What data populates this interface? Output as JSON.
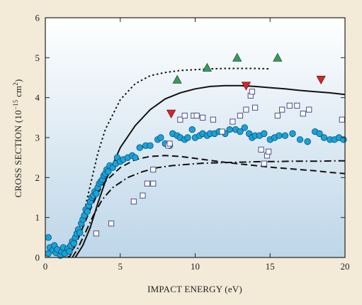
{
  "chart_data": {
    "type": "scatter",
    "xlabel": "IMPACT ENERGY (eV)",
    "ylabel_main": "CROSS SECTION (10",
    "ylabel_exp": "−15",
    "ylabel_tail": " cm",
    "ylabel_exp2": "2",
    "ylabel_close": ")",
    "xlim": [
      0,
      20
    ],
    "ylim": [
      0,
      6
    ],
    "xticks": [
      0,
      5,
      10,
      15,
      20
    ],
    "yticks": [
      0,
      1,
      2,
      3,
      4,
      5,
      6
    ],
    "grid": false,
    "legend": "none",
    "colors": {
      "page_bg": "#f3ead7",
      "plot_bg_top": "#ffffff",
      "plot_bg_bottom": "#bdd6e8",
      "circle": "#1aa3d6",
      "circle_edge": "#0b4f7a",
      "square_edge": "#4a4f8a",
      "triangle_up": "#3a9a5c",
      "triangle_down": "#cc2a2a",
      "curve": "#111111"
    },
    "series": [
      {
        "marker": "circle",
        "points": [
          [
            0.2,
            0.5
          ],
          [
            0.2,
            0.1
          ],
          [
            0.3,
            0.25
          ],
          [
            0.5,
            0.18
          ],
          [
            0.6,
            0.3
          ],
          [
            0.7,
            0.12
          ],
          [
            0.8,
            0.2
          ],
          [
            1.0,
            0.05
          ],
          [
            1.1,
            0.15
          ],
          [
            1.2,
            0.25
          ],
          [
            1.3,
            0.1
          ],
          [
            1.5,
            0.22
          ],
          [
            1.6,
            0.15
          ],
          [
            1.7,
            0.3
          ],
          [
            1.8,
            0.4
          ],
          [
            1.9,
            0.35
          ],
          [
            2.0,
            0.5
          ],
          [
            2.1,
            0.6
          ],
          [
            2.2,
            0.7
          ],
          [
            2.3,
            0.62
          ],
          [
            2.4,
            0.85
          ],
          [
            2.5,
            0.95
          ],
          [
            2.6,
            1.05
          ],
          [
            2.7,
            1.2
          ],
          [
            2.8,
            1.15
          ],
          [
            2.9,
            1.3
          ],
          [
            3.0,
            1.4
          ],
          [
            3.1,
            1.5
          ],
          [
            3.2,
            1.55
          ],
          [
            3.3,
            1.65
          ],
          [
            3.4,
            1.6
          ],
          [
            3.5,
            1.75
          ],
          [
            3.6,
            1.85
          ],
          [
            3.7,
            1.9
          ],
          [
            3.8,
            1.95
          ],
          [
            3.9,
            2.05
          ],
          [
            4.0,
            2.1
          ],
          [
            4.1,
            2.2
          ],
          [
            4.2,
            2.15
          ],
          [
            4.3,
            2.3
          ],
          [
            4.5,
            2.25
          ],
          [
            4.7,
            2.35
          ],
          [
            4.8,
            2.5
          ],
          [
            5.0,
            2.4
          ],
          [
            5.2,
            2.45
          ],
          [
            5.5,
            2.5
          ],
          [
            5.8,
            2.55
          ],
          [
            6.0,
            2.5
          ],
          [
            6.3,
            2.75
          ],
          [
            6.7,
            2.8
          ],
          [
            7.0,
            2.8
          ],
          [
            7.5,
            2.95
          ],
          [
            7.7,
            3.0
          ],
          [
            8.0,
            2.85
          ],
          [
            8.3,
            2.8
          ],
          [
            8.5,
            3.1
          ],
          [
            8.8,
            3.05
          ],
          [
            9.0,
            3.0
          ],
          [
            9.3,
            2.95
          ],
          [
            9.5,
            3.0
          ],
          [
            9.8,
            3.2
          ],
          [
            10.0,
            3.0
          ],
          [
            10.3,
            3.05
          ],
          [
            10.5,
            3.1
          ],
          [
            10.8,
            3.05
          ],
          [
            11.0,
            3.1
          ],
          [
            11.3,
            3.1
          ],
          [
            11.6,
            3.15
          ],
          [
            12.0,
            3.1
          ],
          [
            12.3,
            3.2
          ],
          [
            12.7,
            3.2
          ],
          [
            13.0,
            3.15
          ],
          [
            13.3,
            3.25
          ],
          [
            13.6,
            3.1
          ],
          [
            13.8,
            3.0
          ],
          [
            14.0,
            3.05
          ],
          [
            14.3,
            3.05
          ],
          [
            14.6,
            3.1
          ],
          [
            15.0,
            2.95
          ],
          [
            15.3,
            3.0
          ],
          [
            15.6,
            3.05
          ],
          [
            16.0,
            3.05
          ],
          [
            16.5,
            3.1
          ],
          [
            17.0,
            2.95
          ],
          [
            17.5,
            2.9
          ],
          [
            18.0,
            3.15
          ],
          [
            18.3,
            3.1
          ],
          [
            18.6,
            3.0
          ],
          [
            19.0,
            2.95
          ],
          [
            19.3,
            2.95
          ],
          [
            19.6,
            3.0
          ],
          [
            19.9,
            2.95
          ]
        ]
      },
      {
        "marker": "square",
        "points": [
          [
            3.4,
            0.6
          ],
          [
            4.4,
            0.85
          ],
          [
            5.9,
            1.4
          ],
          [
            6.5,
            1.55
          ],
          [
            6.8,
            1.85
          ],
          [
            7.2,
            1.85
          ],
          [
            7.2,
            2.2
          ],
          [
            8.2,
            2.8
          ],
          [
            8.3,
            2.85
          ],
          [
            9.0,
            3.45
          ],
          [
            9.3,
            3.55
          ],
          [
            9.9,
            3.55
          ],
          [
            10.1,
            3.55
          ],
          [
            10.5,
            3.5
          ],
          [
            11.2,
            3.45
          ],
          [
            11.8,
            3.15
          ],
          [
            12.5,
            3.4
          ],
          [
            13.0,
            3.55
          ],
          [
            13.4,
            3.7
          ],
          [
            13.7,
            4.05
          ],
          [
            13.8,
            4.15
          ],
          [
            14.0,
            3.75
          ],
          [
            14.4,
            2.7
          ],
          [
            14.8,
            2.55
          ],
          [
            14.9,
            2.65
          ],
          [
            15.5,
            3.55
          ],
          [
            15.8,
            3.7
          ],
          [
            16.3,
            3.8
          ],
          [
            16.8,
            3.8
          ],
          [
            17.2,
            3.6
          ],
          [
            17.6,
            3.7
          ],
          [
            19.8,
            3.45
          ],
          [
            14.6,
            2.35
          ]
        ]
      },
      {
        "marker": "triangle-up",
        "points": [
          [
            8.8,
            4.45
          ],
          [
            10.8,
            4.75
          ],
          [
            12.8,
            5.0
          ],
          [
            15.5,
            5.0
          ]
        ]
      },
      {
        "marker": "triangle-down",
        "points": [
          [
            8.4,
            3.6
          ],
          [
            13.4,
            4.3
          ],
          [
            18.4,
            4.45
          ]
        ]
      },
      {
        "style": "dotted",
        "points": [
          [
            1.5,
            0
          ],
          [
            2.0,
            0.3
          ],
          [
            2.5,
            1.0
          ],
          [
            3.0,
            1.8
          ],
          [
            3.5,
            2.6
          ],
          [
            4.0,
            3.2
          ],
          [
            5.0,
            3.95
          ],
          [
            6.0,
            4.35
          ],
          [
            7.0,
            4.55
          ],
          [
            8.0,
            4.63
          ],
          [
            9.0,
            4.68
          ],
          [
            10.0,
            4.7
          ],
          [
            11.0,
            4.72
          ],
          [
            12.0,
            4.73
          ],
          [
            13.0,
            4.73
          ],
          [
            14.0,
            4.73
          ],
          [
            15.0,
            4.72
          ]
        ]
      },
      {
        "style": "solid",
        "points": [
          [
            2.0,
            0
          ],
          [
            2.5,
            0.3
          ],
          [
            3.0,
            0.75
          ],
          [
            3.5,
            1.35
          ],
          [
            4.0,
            1.9
          ],
          [
            5.0,
            2.75
          ],
          [
            6.0,
            3.3
          ],
          [
            7.0,
            3.7
          ],
          [
            8.0,
            3.97
          ],
          [
            9.0,
            4.12
          ],
          [
            10.0,
            4.22
          ],
          [
            11.0,
            4.28
          ],
          [
            12.0,
            4.3
          ],
          [
            13.0,
            4.3
          ],
          [
            14.0,
            4.28
          ],
          [
            15.0,
            4.25
          ],
          [
            16.0,
            4.22
          ],
          [
            17.0,
            4.18
          ],
          [
            18.0,
            4.15
          ],
          [
            19.0,
            4.12
          ],
          [
            20.0,
            4.08
          ]
        ]
      },
      {
        "style": "dashed",
        "points": [
          [
            1.6,
            0
          ],
          [
            2.0,
            0.3
          ],
          [
            2.5,
            0.75
          ],
          [
            3.0,
            1.2
          ],
          [
            3.5,
            1.6
          ],
          [
            4.0,
            1.9
          ],
          [
            5.0,
            2.25
          ],
          [
            6.0,
            2.45
          ],
          [
            7.0,
            2.53
          ],
          [
            8.0,
            2.55
          ],
          [
            9.0,
            2.53
          ],
          [
            10.0,
            2.48
          ],
          [
            11.0,
            2.43
          ],
          [
            12.0,
            2.38
          ],
          [
            13.0,
            2.34
          ],
          [
            14.0,
            2.3
          ],
          [
            15.0,
            2.26
          ],
          [
            16.0,
            2.23
          ],
          [
            17.0,
            2.2
          ],
          [
            18.0,
            2.17
          ],
          [
            19.0,
            2.13
          ],
          [
            20.0,
            2.1
          ]
        ]
      },
      {
        "style": "dashdot",
        "points": [
          [
            1.8,
            0
          ],
          [
            2.2,
            0.25
          ],
          [
            2.7,
            0.65
          ],
          [
            3.2,
            1.05
          ],
          [
            3.8,
            1.45
          ],
          [
            4.5,
            1.75
          ],
          [
            5.5,
            2.0
          ],
          [
            6.5,
            2.15
          ],
          [
            7.5,
            2.25
          ],
          [
            8.5,
            2.3
          ],
          [
            9.5,
            2.33
          ],
          [
            10.5,
            2.36
          ],
          [
            11.5,
            2.37
          ],
          [
            12.5,
            2.38
          ],
          [
            13.5,
            2.39
          ],
          [
            14.5,
            2.4
          ],
          [
            15.5,
            2.4
          ],
          [
            16.5,
            2.41
          ],
          [
            17.5,
            2.41
          ],
          [
            18.5,
            2.41
          ],
          [
            19.5,
            2.42
          ],
          [
            20.0,
            2.42
          ]
        ]
      }
    ]
  }
}
